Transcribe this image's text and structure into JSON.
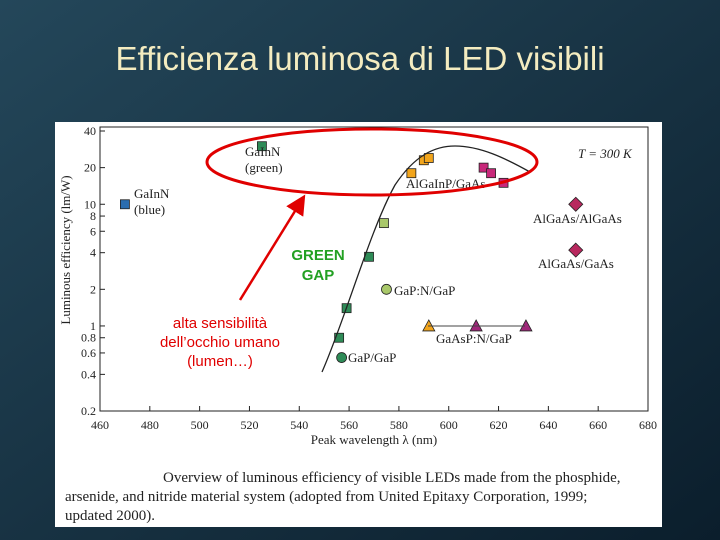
{
  "slide_title": "Efficienza luminosa di LED visibili",
  "overlay": {
    "green_gap": [
      "GREEN",
      "GAP"
    ],
    "note": [
      "alta sensibilità",
      "dell’occhio umano",
      "(lumen…)"
    ]
  },
  "chart_data": {
    "type": "scatter",
    "ylabel": "Luminous efficiency (lm/W)",
    "xlabel": "Peak wavelength λ (nm)",
    "annotation": "T = 300 K",
    "caption": [
      "Overview of luminous efficiency of visible LEDs made from the phosphide,",
      "arsenide, and nitride material system (adopted from United Epitaxy Corporation, 1999;",
      "updated 2000)."
    ],
    "xlim": [
      460,
      680
    ],
    "xticks": [
      460,
      480,
      500,
      520,
      540,
      560,
      580,
      600,
      620,
      640,
      660,
      680
    ],
    "ylim": [
      0.2,
      40
    ],
    "yscale": "log",
    "yticks": [
      0.2,
      0.4,
      0.6,
      0.8,
      1,
      2,
      4,
      6,
      8,
      10,
      20,
      40
    ],
    "series": [
      {
        "name": "GaInN (blue)",
        "color": "#2a6db0",
        "marker": "square",
        "x": [
          470
        ],
        "values": [
          10
        ]
      },
      {
        "name": "GaInN (green)",
        "color": "#2e8b57",
        "marker": "square",
        "x": [
          525
        ],
        "values": [
          30
        ]
      },
      {
        "name": "AlGaInP/GaAs",
        "color": "#f2a51c",
        "marker": "square",
        "x": [
          585,
          590,
          592
        ],
        "values": [
          18,
          23,
          24
        ]
      },
      {
        "color": "#c8287a",
        "marker": "square",
        "x": [
          614,
          617,
          622
        ],
        "values": [
          20,
          18,
          15
        ]
      },
      {
        "color": "#a9c86a",
        "marker": "square",
        "x": [
          574
        ],
        "values": [
          7
        ]
      },
      {
        "name": "GaP:N/GaP",
        "color": "#a9c86a",
        "marker": "circle",
        "x": [
          575
        ],
        "values": [
          2
        ]
      },
      {
        "color": "#2e8b57",
        "marker": "square",
        "x": [
          568,
          559,
          556
        ],
        "values": [
          3.7,
          1.4,
          0.8
        ]
      },
      {
        "name": "GaP/GaP",
        "color": "#2e8b57",
        "marker": "circle",
        "x": [
          557
        ],
        "values": [
          0.55
        ]
      },
      {
        "name": "AlGaAs/AlGaAs",
        "color": "#b8285e",
        "marker": "diamond",
        "x": [
          651
        ],
        "values": [
          10
        ]
      },
      {
        "name": "AlGaAs/GaAs",
        "color": "#b8285e",
        "marker": "diamond",
        "x": [
          651
        ],
        "values": [
          4.2
        ]
      },
      {
        "name": "GaAsP:N/GaP",
        "colors": [
          "#f2a51c",
          "#a0287a",
          "#a0287a"
        ],
        "marker": "triangle",
        "x": [
          592,
          611,
          631
        ],
        "values": [
          1,
          1,
          1
        ]
      }
    ]
  }
}
